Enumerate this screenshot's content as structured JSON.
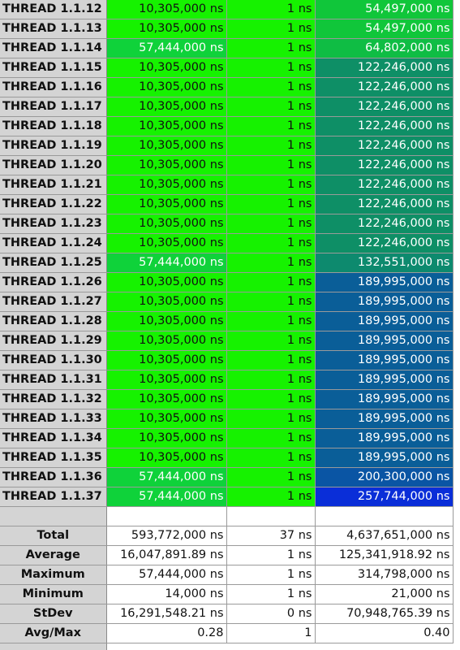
{
  "threads": [
    {
      "name": "THREAD 1.1.12",
      "v1": "10,305,000 ns",
      "v2": "1 ns",
      "v3": "54,497,000 ns",
      "c1": "#16f200",
      "c3": "#10c63a",
      "t1": "light",
      "t3": "dark"
    },
    {
      "name": "THREAD 1.1.13",
      "v1": "10,305,000 ns",
      "v2": "1 ns",
      "v3": "54,497,000 ns",
      "c1": "#16f200",
      "c3": "#10c63a",
      "t1": "light",
      "t3": "dark"
    },
    {
      "name": "THREAD 1.1.14",
      "v1": "57,444,000 ns",
      "v2": "1 ns",
      "v3": "64,802,000 ns",
      "c1": "#0fd23a",
      "c3": "#0fbd44",
      "t1": "dark",
      "t3": "dark"
    },
    {
      "name": "THREAD 1.1.15",
      "v1": "10,305,000 ns",
      "v2": "1 ns",
      "v3": "122,246,000 ns",
      "c1": "#16f200",
      "c3": "#0e8f66",
      "t1": "light",
      "t3": "dark"
    },
    {
      "name": "THREAD 1.1.16",
      "v1": "10,305,000 ns",
      "v2": "1 ns",
      "v3": "122,246,000 ns",
      "c1": "#16f200",
      "c3": "#0e8f66",
      "t1": "light",
      "t3": "dark"
    },
    {
      "name": "THREAD 1.1.17",
      "v1": "10,305,000 ns",
      "v2": "1 ns",
      "v3": "122,246,000 ns",
      "c1": "#16f200",
      "c3": "#0e8f66",
      "t1": "light",
      "t3": "dark"
    },
    {
      "name": "THREAD 1.1.18",
      "v1": "10,305,000 ns",
      "v2": "1 ns",
      "v3": "122,246,000 ns",
      "c1": "#16f200",
      "c3": "#0e8f66",
      "t1": "light",
      "t3": "dark"
    },
    {
      "name": "THREAD 1.1.19",
      "v1": "10,305,000 ns",
      "v2": "1 ns",
      "v3": "122,246,000 ns",
      "c1": "#16f200",
      "c3": "#0e8f66",
      "t1": "light",
      "t3": "dark"
    },
    {
      "name": "THREAD 1.1.20",
      "v1": "10,305,000 ns",
      "v2": "1 ns",
      "v3": "122,246,000 ns",
      "c1": "#16f200",
      "c3": "#0e8f66",
      "t1": "light",
      "t3": "dark"
    },
    {
      "name": "THREAD 1.1.21",
      "v1": "10,305,000 ns",
      "v2": "1 ns",
      "v3": "122,246,000 ns",
      "c1": "#16f200",
      "c3": "#0e8f66",
      "t1": "light",
      "t3": "dark"
    },
    {
      "name": "THREAD 1.1.22",
      "v1": "10,305,000 ns",
      "v2": "1 ns",
      "v3": "122,246,000 ns",
      "c1": "#16f200",
      "c3": "#0e8f66",
      "t1": "light",
      "t3": "dark"
    },
    {
      "name": "THREAD 1.1.23",
      "v1": "10,305,000 ns",
      "v2": "1 ns",
      "v3": "122,246,000 ns",
      "c1": "#16f200",
      "c3": "#0e8f66",
      "t1": "light",
      "t3": "dark"
    },
    {
      "name": "THREAD 1.1.24",
      "v1": "10,305,000 ns",
      "v2": "1 ns",
      "v3": "122,246,000 ns",
      "c1": "#16f200",
      "c3": "#0e8f66",
      "t1": "light",
      "t3": "dark"
    },
    {
      "name": "THREAD 1.1.25",
      "v1": "57,444,000 ns",
      "v2": "1 ns",
      "v3": "132,551,000 ns",
      "c1": "#0fd23a",
      "c3": "#0d8a6e",
      "t1": "dark",
      "t3": "dark"
    },
    {
      "name": "THREAD 1.1.26",
      "v1": "10,305,000 ns",
      "v2": "1 ns",
      "v3": "189,995,000 ns",
      "c1": "#16f200",
      "c3": "#0a5e98",
      "t1": "light",
      "t3": "dark"
    },
    {
      "name": "THREAD 1.1.27",
      "v1": "10,305,000 ns",
      "v2": "1 ns",
      "v3": "189,995,000 ns",
      "c1": "#16f200",
      "c3": "#0a5e98",
      "t1": "light",
      "t3": "dark"
    },
    {
      "name": "THREAD 1.1.28",
      "v1": "10,305,000 ns",
      "v2": "1 ns",
      "v3": "189,995,000 ns",
      "c1": "#16f200",
      "c3": "#0a5e98",
      "t1": "light",
      "t3": "dark"
    },
    {
      "name": "THREAD 1.1.29",
      "v1": "10,305,000 ns",
      "v2": "1 ns",
      "v3": "189,995,000 ns",
      "c1": "#16f200",
      "c3": "#0a5e98",
      "t1": "light",
      "t3": "dark"
    },
    {
      "name": "THREAD 1.1.30",
      "v1": "10,305,000 ns",
      "v2": "1 ns",
      "v3": "189,995,000 ns",
      "c1": "#16f200",
      "c3": "#0a5e98",
      "t1": "light",
      "t3": "dark"
    },
    {
      "name": "THREAD 1.1.31",
      "v1": "10,305,000 ns",
      "v2": "1 ns",
      "v3": "189,995,000 ns",
      "c1": "#16f200",
      "c3": "#0a5e98",
      "t1": "light",
      "t3": "dark"
    },
    {
      "name": "THREAD 1.1.32",
      "v1": "10,305,000 ns",
      "v2": "1 ns",
      "v3": "189,995,000 ns",
      "c1": "#16f200",
      "c3": "#0a5e98",
      "t1": "light",
      "t3": "dark"
    },
    {
      "name": "THREAD 1.1.33",
      "v1": "10,305,000 ns",
      "v2": "1 ns",
      "v3": "189,995,000 ns",
      "c1": "#16f200",
      "c3": "#0a5e98",
      "t1": "light",
      "t3": "dark"
    },
    {
      "name": "THREAD 1.1.34",
      "v1": "10,305,000 ns",
      "v2": "1 ns",
      "v3": "189,995,000 ns",
      "c1": "#16f200",
      "c3": "#0a5e98",
      "t1": "light",
      "t3": "dark"
    },
    {
      "name": "THREAD 1.1.35",
      "v1": "10,305,000 ns",
      "v2": "1 ns",
      "v3": "189,995,000 ns",
      "c1": "#16f200",
      "c3": "#0a5e98",
      "t1": "light",
      "t3": "dark"
    },
    {
      "name": "THREAD 1.1.36",
      "v1": "57,444,000 ns",
      "v2": "1 ns",
      "v3": "200,300,000 ns",
      "c1": "#0fd23a",
      "c3": "#0a55a4",
      "t1": "dark",
      "t3": "dark"
    },
    {
      "name": "THREAD 1.1.37",
      "v1": "57,444,000 ns",
      "v2": "1 ns",
      "v3": "257,744,000 ns",
      "c1": "#0fd23a",
      "c3": "#0a2ed8",
      "t1": "dark",
      "t3": "dark"
    }
  ],
  "col2_color": "#16f200",
  "summary": [
    {
      "name": "Total",
      "v1": "593,772,000 ns",
      "v2": "37 ns",
      "v3": "4,637,651,000 ns"
    },
    {
      "name": "Average",
      "v1": "16,047,891.89 ns",
      "v2": "1 ns",
      "v3": "125,341,918.92 ns"
    },
    {
      "name": "Maximum",
      "v1": "57,444,000 ns",
      "v2": "1 ns",
      "v3": "314,798,000 ns"
    },
    {
      "name": "Minimum",
      "v1": "14,000 ns",
      "v2": "1 ns",
      "v3": "21,000 ns"
    },
    {
      "name": "StDev",
      "v1": "16,291,548.21 ns",
      "v2": "0 ns",
      "v3": "70,948,765.39 ns"
    },
    {
      "name": "Avg/Max",
      "v1": "0.28",
      "v2": "1",
      "v3": "0.40"
    }
  ]
}
